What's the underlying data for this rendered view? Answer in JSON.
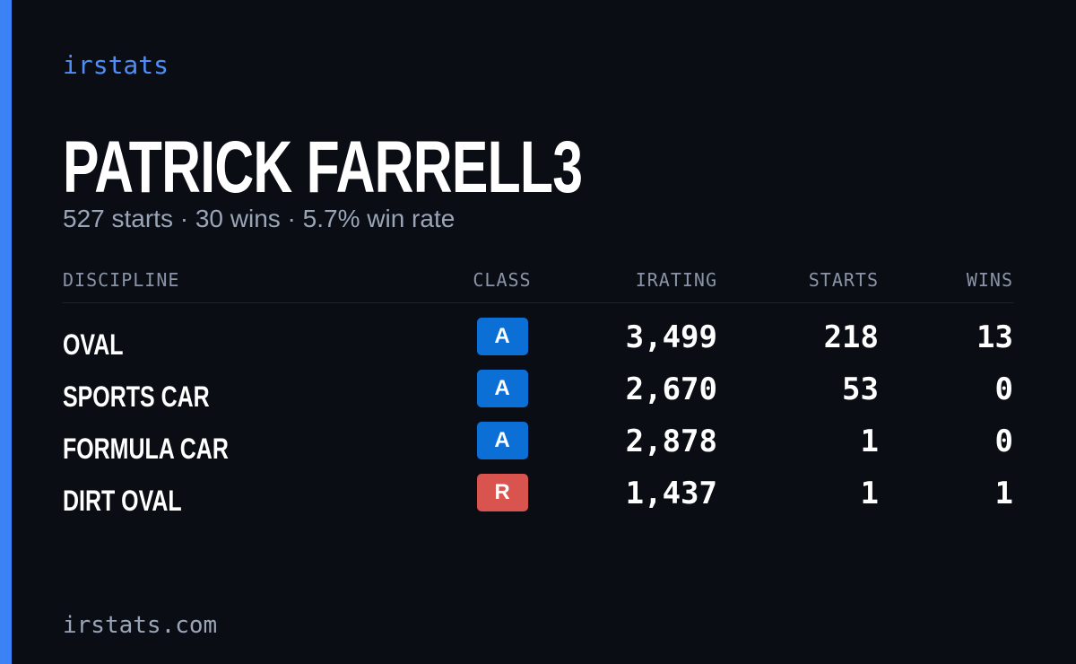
{
  "brand": "irstats",
  "profile": {
    "name": "PATRICK FARRELL3",
    "summary": "527 starts · 30 wins · 5.7% win rate"
  },
  "table": {
    "headers": [
      "DISCIPLINE",
      "CLASS",
      "IRATING",
      "STARTS",
      "WINS"
    ],
    "rows": [
      {
        "discipline": "OVAL",
        "class": "A",
        "class_color": "#0b6fd6",
        "irating": "3,499",
        "starts": "218",
        "wins": "13"
      },
      {
        "discipline": "SPORTS CAR",
        "class": "A",
        "class_color": "#0b6fd6",
        "irating": "2,670",
        "starts": "53",
        "wins": "0"
      },
      {
        "discipline": "FORMULA CAR",
        "class": "A",
        "class_color": "#0b6fd6",
        "irating": "2,878",
        "starts": "1",
        "wins": "0"
      },
      {
        "discipline": "DIRT OVAL",
        "class": "R",
        "class_color": "#d9534f",
        "irating": "1,437",
        "starts": "1",
        "wins": "1"
      }
    ]
  },
  "footer": "irstats.com"
}
